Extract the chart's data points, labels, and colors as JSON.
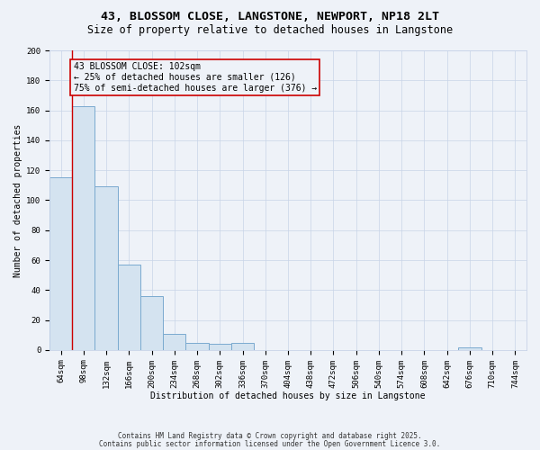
{
  "title1": "43, BLOSSOM CLOSE, LANGSTONE, NEWPORT, NP18 2LT",
  "title2": "Size of property relative to detached houses in Langstone",
  "xlabel": "Distribution of detached houses by size in Langstone",
  "ylabel": "Number of detached properties",
  "categories": [
    "64sqm",
    "98sqm",
    "132sqm",
    "166sqm",
    "200sqm",
    "234sqm",
    "268sqm",
    "302sqm",
    "336sqm",
    "370sqm",
    "404sqm",
    "438sqm",
    "472sqm",
    "506sqm",
    "540sqm",
    "574sqm",
    "608sqm",
    "642sqm",
    "676sqm",
    "710sqm",
    "744sqm"
  ],
  "values": [
    115,
    163,
    109,
    57,
    36,
    11,
    5,
    4,
    5,
    0,
    0,
    0,
    0,
    0,
    0,
    0,
    0,
    0,
    2,
    0,
    0
  ],
  "bar_color": "#d4e3f0",
  "bar_edge_color": "#7aaacf",
  "grid_color": "#c8d4e8",
  "annotation_text": "43 BLOSSOM CLOSE: 102sqm\n← 25% of detached houses are smaller (126)\n75% of semi-detached houses are larger (376) →",
  "annotation_box_color": "#cc0000",
  "vline_color": "#cc0000",
  "vline_x": 1,
  "ylim": [
    0,
    200
  ],
  "yticks": [
    0,
    20,
    40,
    60,
    80,
    100,
    120,
    140,
    160,
    180,
    200
  ],
  "footer1": "Contains HM Land Registry data © Crown copyright and database right 2025.",
  "footer2": "Contains public sector information licensed under the Open Government Licence 3.0.",
  "bg_color": "#eef2f8",
  "title1_fontsize": 9.5,
  "title2_fontsize": 8.5,
  "annot_fontsize": 7,
  "tick_fontsize": 6.5,
  "label_fontsize": 7,
  "footer_fontsize": 5.5
}
